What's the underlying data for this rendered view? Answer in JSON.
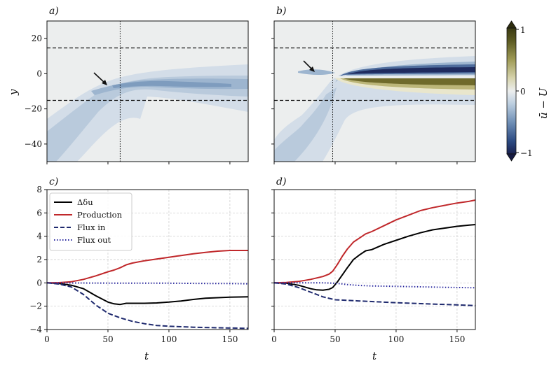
{
  "figure": {
    "panel_labels": [
      "a)",
      "b)",
      "c)",
      "d)"
    ],
    "x_label": "t",
    "y_label_top": "y",
    "colorbar_label": "ū − U",
    "colorbar_ticks": [
      "1",
      "0",
      "−1"
    ]
  },
  "chart_data": [
    {
      "id": "a",
      "type": "heatmap",
      "title": "a)",
      "xlim": [
        0,
        165
      ],
      "ylim": [
        -50,
        30
      ],
      "y_ticks": [
        20,
        0,
        -20,
        -40
      ],
      "y_tick_labels": [
        "20",
        "0",
        "−20",
        "−40"
      ],
      "x_ticks": [
        0,
        50,
        100,
        150
      ],
      "dashed_y_lines": [
        15,
        -15
      ],
      "dotted_x_line": 60,
      "arrow_tip": [
        48,
        -8
      ],
      "colormap_range": [
        -1,
        1
      ],
      "description_fields": {
        "feature": "weak negative (blue) region spreading downward, ~-0.3 max"
      }
    },
    {
      "id": "b",
      "type": "heatmap",
      "title": "b)",
      "xlim": [
        0,
        165
      ],
      "ylim": [
        -50,
        30
      ],
      "y_ticks": [
        20,
        0,
        -20,
        -40
      ],
      "x_ticks": [
        0,
        50,
        100,
        150
      ],
      "dashed_y_lines": [
        15,
        -15
      ],
      "dotted_x_line": 48,
      "arrow_tip": [
        31,
        0
      ],
      "colormap_range": [
        -1,
        1
      ]
    },
    {
      "id": "c",
      "type": "line",
      "title": "c)",
      "xlabel": "t",
      "ylabel": "",
      "xlim": [
        0,
        165
      ],
      "ylim": [
        -4,
        8
      ],
      "x_ticks": [
        0,
        50,
        100,
        150
      ],
      "y_ticks": [
        8,
        6,
        4,
        2,
        0,
        -2,
        -4
      ],
      "y_tick_labels": [
        "8",
        "6",
        "4",
        "2",
        "0",
        "−2",
        "−4"
      ],
      "grid": true,
      "legend": "top-left",
      "series": [
        {
          "name": "Δδu",
          "color": "#000000",
          "style": "solid",
          "x": [
            0,
            10,
            20,
            30,
            40,
            50,
            55,
            60,
            65,
            70,
            80,
            90,
            100,
            110,
            120,
            130,
            140,
            150,
            165
          ],
          "y": [
            0,
            -0.05,
            -0.2,
            -0.5,
            -1.1,
            -1.65,
            -1.8,
            -1.85,
            -1.75,
            -1.75,
            -1.75,
            -1.72,
            -1.65,
            -1.55,
            -1.42,
            -1.32,
            -1.27,
            -1.22,
            -1.2
          ]
        },
        {
          "name": "Production",
          "color": "#c0282b",
          "style": "solid",
          "x": [
            0,
            10,
            20,
            30,
            40,
            50,
            55,
            60,
            65,
            70,
            80,
            90,
            100,
            110,
            120,
            130,
            140,
            150,
            165
          ],
          "y": [
            0,
            0.02,
            0.1,
            0.3,
            0.6,
            0.95,
            1.1,
            1.3,
            1.55,
            1.7,
            1.9,
            2.05,
            2.2,
            2.35,
            2.5,
            2.62,
            2.72,
            2.78,
            2.78
          ]
        },
        {
          "name": "Flux in",
          "color": "#1f2a6e",
          "style": "dashed",
          "x": [
            0,
            10,
            20,
            30,
            40,
            50,
            60,
            70,
            80,
            90,
            100,
            120,
            140,
            165
          ],
          "y": [
            0,
            -0.1,
            -0.35,
            -1.0,
            -1.9,
            -2.6,
            -3.0,
            -3.3,
            -3.5,
            -3.65,
            -3.72,
            -3.8,
            -3.85,
            -3.9
          ]
        },
        {
          "name": "Flux out",
          "color": "#2b2aa0",
          "style": "dotted",
          "x": [
            0,
            50,
            100,
            130,
            150,
            165
          ],
          "y": [
            0,
            -0.02,
            -0.03,
            -0.05,
            -0.06,
            -0.08
          ]
        }
      ]
    },
    {
      "id": "d",
      "type": "line",
      "title": "d)",
      "xlabel": "t",
      "ylabel": "",
      "xlim": [
        0,
        165
      ],
      "ylim": [
        -4,
        8
      ],
      "x_ticks": [
        0,
        50,
        100,
        150
      ],
      "y_ticks": [
        8,
        6,
        4,
        2,
        0,
        -2,
        -4
      ],
      "grid": true,
      "series": [
        {
          "name": "Δδu",
          "color": "#000000",
          "style": "solid",
          "x": [
            0,
            10,
            20,
            30,
            35,
            40,
            45,
            48,
            52,
            56,
            60,
            65,
            70,
            75,
            80,
            90,
            100,
            110,
            120,
            130,
            140,
            150,
            160,
            165
          ],
          "y": [
            0,
            -0.03,
            -0.2,
            -0.5,
            -0.6,
            -0.62,
            -0.55,
            -0.4,
            0.1,
            0.7,
            1.3,
            2.0,
            2.4,
            2.75,
            2.85,
            3.3,
            3.65,
            4.0,
            4.3,
            4.55,
            4.7,
            4.85,
            4.95,
            5.0
          ]
        },
        {
          "name": "Production",
          "color": "#c0282b",
          "style": "solid",
          "x": [
            0,
            10,
            20,
            30,
            40,
            45,
            48,
            52,
            56,
            60,
            65,
            70,
            75,
            80,
            90,
            100,
            110,
            120,
            130,
            140,
            150,
            160,
            165
          ],
          "y": [
            0,
            0.03,
            0.12,
            0.3,
            0.55,
            0.75,
            1.0,
            1.6,
            2.3,
            2.9,
            3.5,
            3.85,
            4.2,
            4.4,
            4.9,
            5.4,
            5.8,
            6.2,
            6.45,
            6.65,
            6.85,
            7.0,
            7.1
          ]
        },
        {
          "name": "Flux in",
          "color": "#1f2a6e",
          "style": "dashed",
          "x": [
            0,
            10,
            20,
            30,
            40,
            50,
            60,
            70,
            80,
            100,
            120,
            140,
            165
          ],
          "y": [
            0,
            -0.1,
            -0.4,
            -0.8,
            -1.2,
            -1.45,
            -1.5,
            -1.55,
            -1.6,
            -1.7,
            -1.78,
            -1.85,
            -1.95
          ]
        },
        {
          "name": "Flux out",
          "color": "#2b2aa0",
          "style": "dotted",
          "x": [
            0,
            40,
            48,
            55,
            60,
            70,
            80,
            100,
            120,
            140,
            165
          ],
          "y": [
            0,
            0,
            -0.02,
            -0.08,
            -0.15,
            -0.22,
            -0.26,
            -0.3,
            -0.34,
            -0.38,
            -0.42
          ]
        }
      ]
    }
  ],
  "colors": {
    "grid": "#c8c8c8",
    "panel_bg": "#eceeee",
    "blue_dark": "#1c2558",
    "olive_dark": "#3e3c14"
  }
}
